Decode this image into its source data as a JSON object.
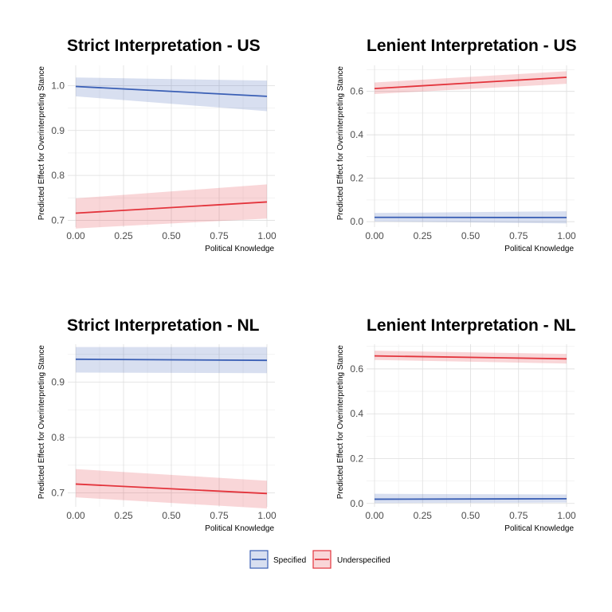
{
  "colors": {
    "specified": "#3a5fb5",
    "underspecified": "#e3343c",
    "grid_major": "#dedede",
    "grid_minor": "#eeeeee"
  },
  "legend": {
    "items": [
      {
        "label": "Specified",
        "color": "#3a5fb5"
      },
      {
        "label": "Underspecified",
        "color": "#e3343c"
      }
    ]
  },
  "chart_data": [
    {
      "type": "line",
      "title": "Strict Interpretation - US",
      "xlabel": "Political Knowledge",
      "ylabel": "Predicted Effect for Overinterpreting Stance",
      "xlim": [
        0,
        1
      ],
      "ylim": [
        0.685,
        1.045
      ],
      "xticks": [
        "0.00",
        "0.25",
        "0.50",
        "0.75",
        "1.00"
      ],
      "yticks": [
        "0.7",
        "0.8",
        "0.9",
        "1.0"
      ],
      "series": [
        {
          "name": "Specified",
          "x": [
            0,
            1
          ],
          "y": [
            0.998,
            0.976
          ],
          "lower": [
            0.976,
            0.943
          ],
          "upper": [
            1.018,
            1.011
          ]
        },
        {
          "name": "Underspecified",
          "x": [
            0,
            1
          ],
          "y": [
            0.716,
            0.741
          ],
          "lower": [
            0.682,
            0.704
          ],
          "upper": [
            0.749,
            0.78
          ]
        }
      ]
    },
    {
      "type": "line",
      "title": "Lenient Interpretation - US",
      "xlabel": "Political Knowledge",
      "ylabel": "Predicted Effect for Overinterpreting Stance",
      "xlim": [
        0,
        1
      ],
      "ylim": [
        -0.025,
        0.72
      ],
      "xticks": [
        "0.00",
        "0.25",
        "0.50",
        "0.75",
        "1.00"
      ],
      "yticks": [
        "0.0",
        "0.2",
        "0.4",
        "0.6"
      ],
      "series": [
        {
          "name": "Specified",
          "x": [
            0,
            1
          ],
          "y": [
            0.02,
            0.019
          ],
          "lower": [
            0.001,
            -0.008
          ],
          "upper": [
            0.04,
            0.048
          ]
        },
        {
          "name": "Underspecified",
          "x": [
            0,
            1
          ],
          "y": [
            0.613,
            0.665
          ],
          "lower": [
            0.588,
            0.635
          ],
          "upper": [
            0.641,
            0.693
          ]
        }
      ]
    },
    {
      "type": "line",
      "title": "Strict Interpretation - NL",
      "xlabel": "Political Knowledge",
      "ylabel": "Predicted Effect for Overinterpreting Stance",
      "xlim": [
        0,
        1
      ],
      "ylim": [
        0.675,
        0.968
      ],
      "xticks": [
        "0.00",
        "0.25",
        "0.50",
        "0.75",
        "1.00"
      ],
      "yticks": [
        "0.7",
        "0.8",
        "0.9"
      ],
      "series": [
        {
          "name": "Specified",
          "x": [
            0,
            1
          ],
          "y": [
            0.941,
            0.939
          ],
          "lower": [
            0.917,
            0.916
          ],
          "upper": [
            0.963,
            0.963
          ]
        },
        {
          "name": "Underspecified",
          "x": [
            0,
            1
          ],
          "y": [
            0.716,
            0.699
          ],
          "lower": [
            0.692,
            0.672
          ],
          "upper": [
            0.743,
            0.722
          ]
        }
      ]
    },
    {
      "type": "line",
      "title": "Lenient Interpretation - NL",
      "xlabel": "Political Knowledge",
      "ylabel": "Predicted Effect for Overinterpreting Stance",
      "xlim": [
        0,
        1
      ],
      "ylim": [
        -0.015,
        0.71
      ],
      "xticks": [
        "0.00",
        "0.25",
        "0.50",
        "0.75",
        "1.00"
      ],
      "yticks": [
        "0.0",
        "0.2",
        "0.4",
        "0.6"
      ],
      "series": [
        {
          "name": "Specified",
          "x": [
            0,
            1
          ],
          "y": [
            0.019,
            0.021
          ],
          "lower": [
            0.002,
            0.004
          ],
          "upper": [
            0.043,
            0.04
          ]
        },
        {
          "name": "Underspecified",
          "x": [
            0,
            1
          ],
          "y": [
            0.658,
            0.645
          ],
          "lower": [
            0.64,
            0.624
          ],
          "upper": [
            0.681,
            0.667
          ]
        }
      ]
    }
  ]
}
